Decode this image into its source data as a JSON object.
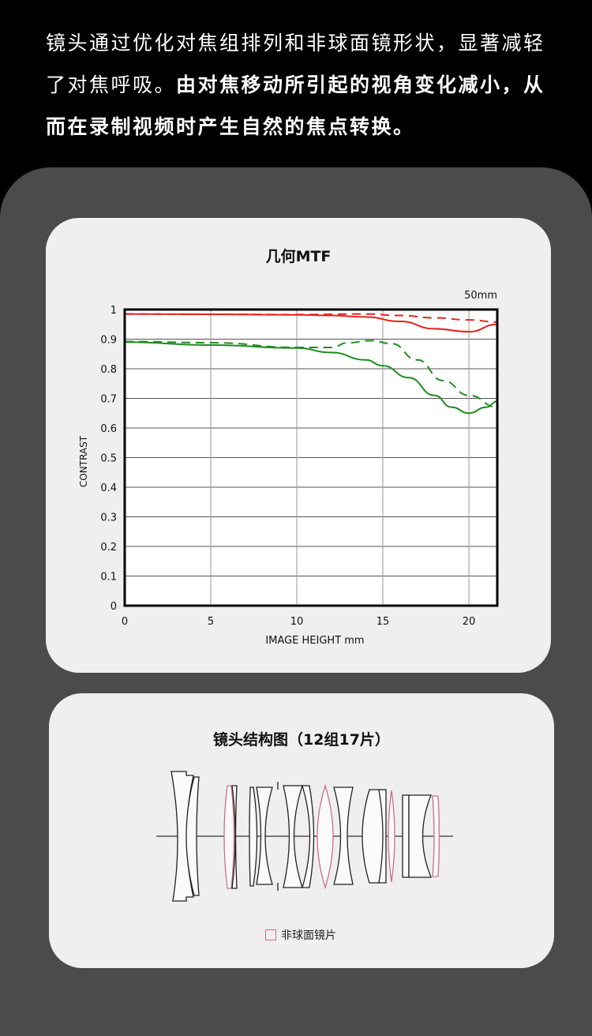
{
  "intro": {
    "normal": "镜头通过优化对焦组排列和非球面镜形状，显著减轻了对焦呼吸。",
    "bold": "由对焦移动所引起的视角变化减小，从而在录制视频时产生自然的焦点转换。"
  },
  "mtf_card": {
    "title": "几何MTF"
  },
  "lens_card": {
    "title": "镜头结构图（12组17片）",
    "legend_label": "非球面镜片",
    "aspherical_color": "#c9708a"
  },
  "chart_data": {
    "type": "line",
    "title": "几何MTF",
    "annotation": "50mm",
    "xlabel": "IMAGE HEIGHT   mm",
    "ylabel": "CONTRAST",
    "xlim": [
      0,
      21.65
    ],
    "ylim": [
      0,
      1
    ],
    "xticks": [
      "0",
      "5",
      "10",
      "15",
      "20"
    ],
    "yticks": [
      "0",
      "0.1",
      "0.2",
      "0.3",
      "0.4",
      "0.5",
      "0.6",
      "0.7",
      "0.8",
      "0.9",
      "1"
    ],
    "grid": true,
    "series": [
      {
        "color": "#e8201c",
        "style": "solid",
        "points": [
          [
            0,
            0.985
          ],
          [
            5,
            0.984
          ],
          [
            10,
            0.982
          ],
          [
            12,
            0.98
          ],
          [
            14,
            0.975
          ],
          [
            16,
            0.96
          ],
          [
            18,
            0.935
          ],
          [
            20,
            0.925
          ],
          [
            21.65,
            0.95
          ]
        ]
      },
      {
        "color": "#e8201c",
        "style": "dashed",
        "points": [
          [
            0,
            0.985
          ],
          [
            5,
            0.984
          ],
          [
            10,
            0.983
          ],
          [
            14,
            0.985
          ],
          [
            16,
            0.98
          ],
          [
            18,
            0.972
          ],
          [
            20,
            0.965
          ],
          [
            21.65,
            0.958
          ]
        ]
      },
      {
        "color": "#1f8c1f",
        "style": "solid",
        "points": [
          [
            0,
            0.89
          ],
          [
            5,
            0.88
          ],
          [
            10,
            0.87
          ],
          [
            12,
            0.855
          ],
          [
            14,
            0.83
          ],
          [
            15,
            0.81
          ],
          [
            16.5,
            0.77
          ],
          [
            18,
            0.71
          ],
          [
            19,
            0.67
          ],
          [
            20,
            0.65
          ],
          [
            21,
            0.67
          ],
          [
            21.65,
            0.69
          ]
        ]
      },
      {
        "color": "#1f8c1f",
        "style": "dashed",
        "points": [
          [
            0,
            0.892
          ],
          [
            5,
            0.888
          ],
          [
            10,
            0.872
          ],
          [
            12,
            0.872
          ],
          [
            13,
            0.888
          ],
          [
            14.3,
            0.895
          ],
          [
            15.5,
            0.885
          ],
          [
            17,
            0.83
          ],
          [
            18.5,
            0.76
          ],
          [
            20,
            0.71
          ],
          [
            21.65,
            0.67
          ]
        ]
      }
    ]
  }
}
